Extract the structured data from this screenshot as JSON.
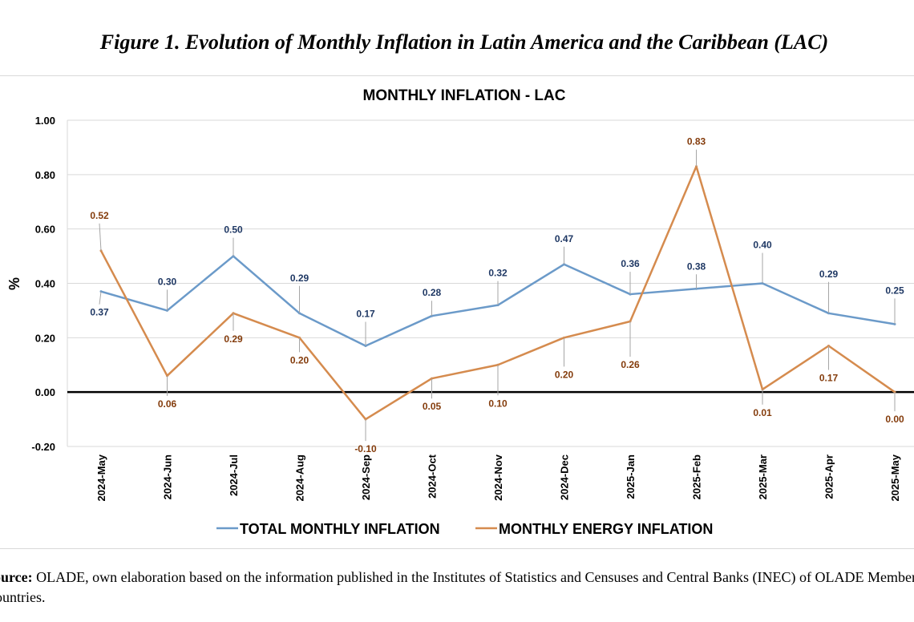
{
  "figure_title": "Figure 1. Evolution of Monthly Inflation in Latin America and the Caribbean (LAC)",
  "source_note": {
    "label": "Source:",
    "text": " OLADE, own elaboration based on the information published in the Institutes of Statistics and Censuses and Central Banks (INEC) of OLADE Member Countries."
  },
  "colors": {
    "total": "#6b9ac9",
    "energy": "#d58b4e",
    "total_label": "#1f3864",
    "energy_label": "#843c0c",
    "zero_line": "#000000",
    "grid": "#d9d9d9"
  },
  "chart_data": {
    "type": "line",
    "title": "MONTHLY INFLATION  - LAC",
    "ylabel": "%",
    "xlabel": "",
    "ylim": [
      -0.2,
      1.0
    ],
    "yticks": [
      1.0,
      0.8,
      0.6,
      0.4,
      0.2,
      0.0,
      -0.2
    ],
    "ytick_labels": [
      "1.00",
      "0.80",
      "0.60",
      "0.40",
      "0.20",
      "0.00",
      "-0.20"
    ],
    "grid": true,
    "legend_position": "bottom",
    "categories": [
      "2024-May",
      "2024-Jun",
      "2024-Jul",
      "2024-Aug",
      "2024-Sep",
      "2024-Oct",
      "2024-Nov",
      "2024-Dec",
      "2025-Jan",
      "2025-Feb",
      "2025-Mar",
      "2025-Apr",
      "2025-May"
    ],
    "series": [
      {
        "name": "TOTAL MONTHLY INFLATION",
        "values": [
          0.37,
          0.3,
          0.5,
          0.29,
          0.17,
          0.28,
          0.32,
          0.47,
          0.36,
          0.38,
          0.4,
          0.29,
          0.25
        ],
        "labels": [
          "0.37",
          "0.30",
          "0.50",
          "0.29",
          "0.17",
          "0.28",
          "0.32",
          "0.47",
          "0.36",
          "0.38",
          "0.40",
          "0.29",
          "0.25"
        ]
      },
      {
        "name": "MONTHLY ENERGY INFLATION",
        "values": [
          0.52,
          0.06,
          0.29,
          0.2,
          -0.1,
          0.05,
          0.1,
          0.2,
          0.26,
          0.83,
          0.01,
          0.17,
          0.0
        ],
        "labels": [
          "0.52",
          "0.06",
          "0.29",
          "0.20",
          "-0.10",
          "0.05",
          "0.10",
          "0.20",
          "0.26",
          "0.83",
          "0.01",
          "0.17",
          "0.00"
        ]
      }
    ]
  }
}
